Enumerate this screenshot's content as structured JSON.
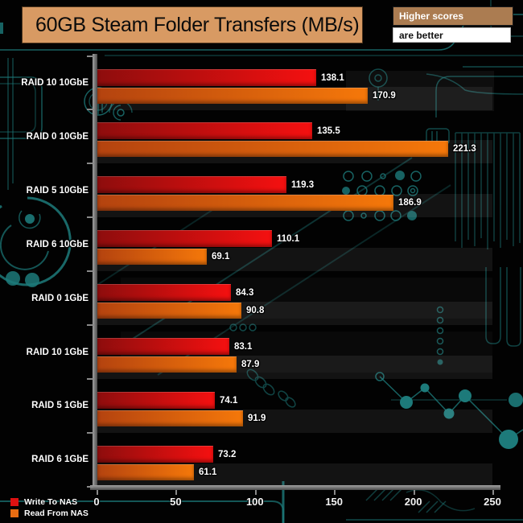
{
  "header": {
    "title": "60GB Steam Folder Transfers (MB/s)",
    "higher_scores": "Higher scores",
    "are_better": "are better"
  },
  "chart_data": {
    "type": "bar",
    "orientation": "horizontal",
    "title": "60GB Steam Folder Transfers (MB/s)",
    "categories": [
      "RAID 10 10GbE",
      "RAID 0 10GbE",
      "RAID 5 10GbE",
      "RAID 6 10GbE",
      "RAID 0 1GbE",
      "RAID 10 1GbE",
      "RAID 5 1GbE",
      "RAID 6 1GbE"
    ],
    "series": [
      {
        "name": "Write To NAS",
        "values": [
          138.1,
          135.5,
          119.3,
          110.1,
          84.3,
          83.1,
          74.1,
          73.2
        ]
      },
      {
        "name": "Read From NAS",
        "values": [
          170.9,
          221.3,
          186.9,
          69.1,
          90.8,
          87.9,
          91.9,
          61.1
        ]
      }
    ],
    "xlabel": "",
    "ylabel": "",
    "xlim": [
      0,
      250
    ],
    "x_ticks": [
      0,
      50,
      100,
      150,
      200,
      250
    ],
    "value_labels": true,
    "grid": false,
    "legend_position": "bottom-left"
  },
  "legend": {
    "items": [
      {
        "label": "Write To NAS",
        "color": "#dd1111"
      },
      {
        "label": "Read From NAS",
        "color": "#e96d12"
      }
    ]
  },
  "colors": {
    "write_bar_dark": "#8e0d0d",
    "write_bar_bright": "#f51010",
    "read_bar_dark": "#b4430f",
    "read_bar_bright": "#f5780a",
    "title_bg": "#d89a63",
    "higher_scores_bg": "#ab7c51",
    "circuit_teal": "#1d7a7a",
    "background": "#020202"
  }
}
